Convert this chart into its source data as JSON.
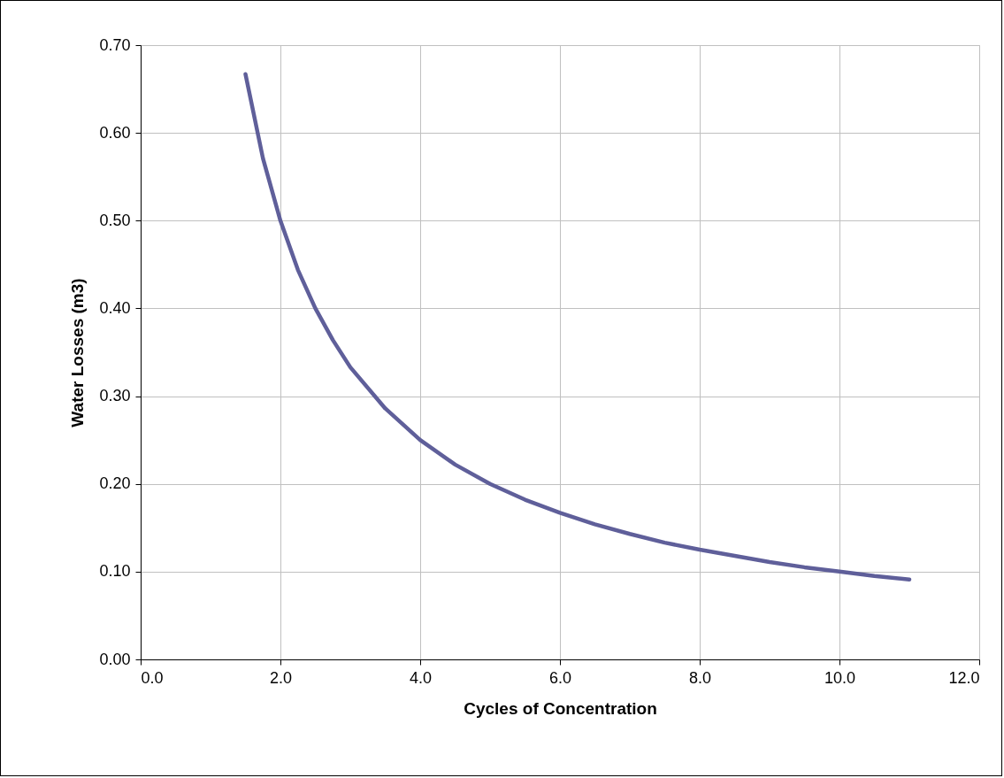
{
  "chart_data": {
    "type": "line",
    "xlabel": "Cycles of Concentration",
    "ylabel": "Water Losses (m3)",
    "x": [
      1.5,
      1.75,
      2,
      2.25,
      2.5,
      2.75,
      3,
      3.5,
      4,
      4.5,
      5,
      5.5,
      6,
      6.5,
      7,
      7.5,
      8,
      8.5,
      9,
      9.5,
      10,
      10.5,
      11
    ],
    "series": [
      {
        "color": "#5f5f9a",
        "values": [
          0.667,
          0.571,
          0.5,
          0.444,
          0.4,
          0.364,
          0.333,
          0.286,
          0.25,
          0.222,
          0.2,
          0.182,
          0.167,
          0.154,
          0.143,
          0.133,
          0.125,
          0.118,
          0.111,
          0.105,
          0.1,
          0.095,
          0.091
        ]
      }
    ],
    "xlim": [
      0,
      12
    ],
    "xticks": [
      {
        "value": 0,
        "label": "0.0"
      },
      {
        "value": 2,
        "label": "2.0"
      },
      {
        "value": 4,
        "label": "4.0"
      },
      {
        "value": 6,
        "label": "6.0"
      },
      {
        "value": 8,
        "label": "8.0"
      },
      {
        "value": 10,
        "label": "10.0"
      },
      {
        "value": 12,
        "label": "12.0"
      }
    ],
    "ylim": [
      0,
      0.7
    ],
    "yticks": [
      {
        "value": 0,
        "label": "0.00"
      },
      {
        "value": 0.1,
        "label": "0.10"
      },
      {
        "value": 0.2,
        "label": "0.20"
      },
      {
        "value": 0.3,
        "label": "0.30"
      },
      {
        "value": 0.4,
        "label": "0.40"
      },
      {
        "value": 0.5,
        "label": "0.50"
      },
      {
        "value": 0.6,
        "label": "0.60"
      },
      {
        "value": 0.7,
        "label": "0.70"
      }
    ],
    "grid": true,
    "marker": "none",
    "line_style": "solid"
  }
}
